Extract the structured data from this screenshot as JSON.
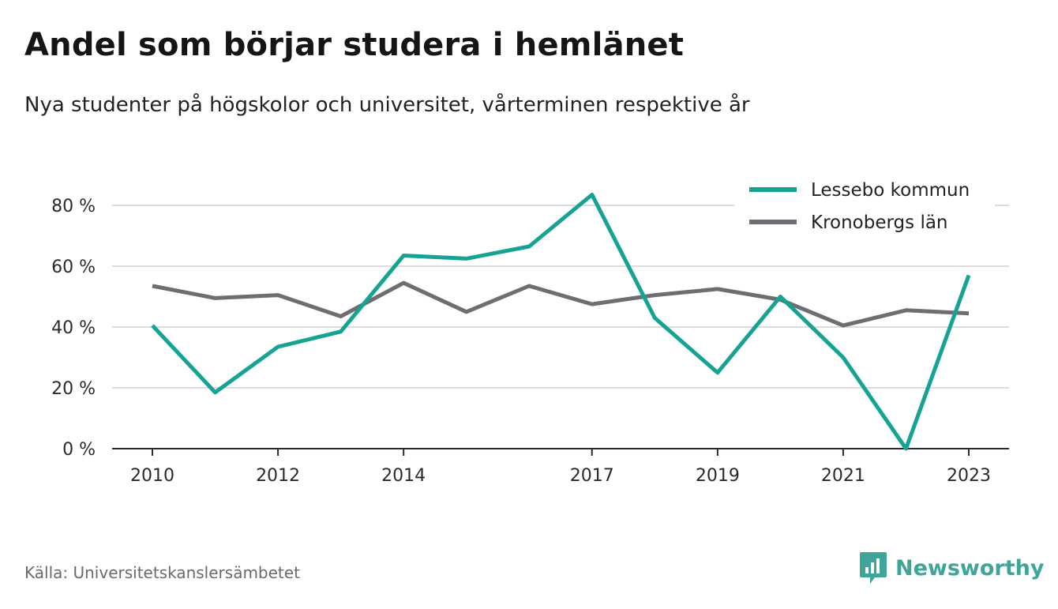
{
  "title": "Andel som börjar studera i hemlänet",
  "subtitle": "Nya studenter på högskolor och universitet, vårterminen respektive år",
  "source": "Källa: Universitetskanslersämbetet",
  "brand": {
    "name": "Newsworthy",
    "icon": "newsworthy-logo-icon",
    "color": "#3fa59a"
  },
  "chart_data": {
    "type": "line",
    "x": [
      2010,
      2011,
      2012,
      2013,
      2014,
      2015,
      2016,
      2017,
      2018,
      2019,
      2020,
      2021,
      2022,
      2023
    ],
    "x_tick_labels": [
      "2010",
      "2012",
      "2014",
      "2017",
      "2019",
      "2021",
      "2023"
    ],
    "y_tick_labels": [
      "0 %",
      "20 %",
      "40 %",
      "60 %",
      "80 %"
    ],
    "ylim": [
      0,
      80
    ],
    "grid": true,
    "legend_position": "top-right",
    "series": [
      {
        "name": "Lessebo kommun",
        "color": "#16a394",
        "values": [
          40.5,
          18.5,
          33.5,
          38.5,
          63.5,
          62.5,
          66.5,
          83.5,
          43,
          25,
          50,
          30,
          0,
          57
        ]
      },
      {
        "name": "Kronobergs län",
        "color": "#6e6d73",
        "values": [
          53.5,
          49.5,
          50.5,
          43.5,
          54.5,
          45,
          53.5,
          47.5,
          50.5,
          52.5,
          49,
          40.5,
          45.5,
          44.5
        ]
      }
    ]
  }
}
